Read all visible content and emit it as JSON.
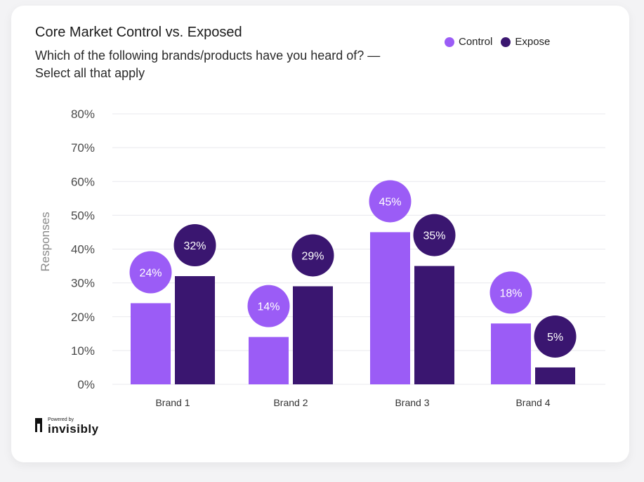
{
  "header": {
    "title": "Core Market Control vs. Exposed",
    "subtitle": "Which of the following brands/products have you heard of? —Select all that apply"
  },
  "legend": {
    "items": [
      {
        "label": "Control",
        "color": "#9b5cf6"
      },
      {
        "label": "Expose",
        "color": "#3a1670"
      }
    ]
  },
  "branding": {
    "powered_by": "Powered by",
    "name": "invisibly"
  },
  "chart_data": {
    "type": "bar",
    "categories": [
      "Brand 1",
      "Brand 2",
      "Brand 3",
      "Brand 4"
    ],
    "series": [
      {
        "name": "Control",
        "values": [
          24,
          14,
          45,
          18
        ],
        "color": "#9b5cf6"
      },
      {
        "name": "Expose",
        "values": [
          32,
          29,
          35,
          5
        ],
        "color": "#3a1670"
      }
    ],
    "data_labels": [
      [
        "24%",
        "14%",
        "45%",
        "18%"
      ],
      [
        "32%",
        "29%",
        "35%",
        "5%"
      ]
    ],
    "title": "Core Market Control vs. Exposed",
    "xlabel": "",
    "ylabel": "Responses",
    "ylim": [
      0,
      80
    ],
    "yticks": [
      "0%",
      "10%",
      "20%",
      "30%",
      "40%",
      "50%",
      "60%",
      "70%",
      "80%"
    ],
    "grid": true,
    "legend_position": "top-right"
  }
}
